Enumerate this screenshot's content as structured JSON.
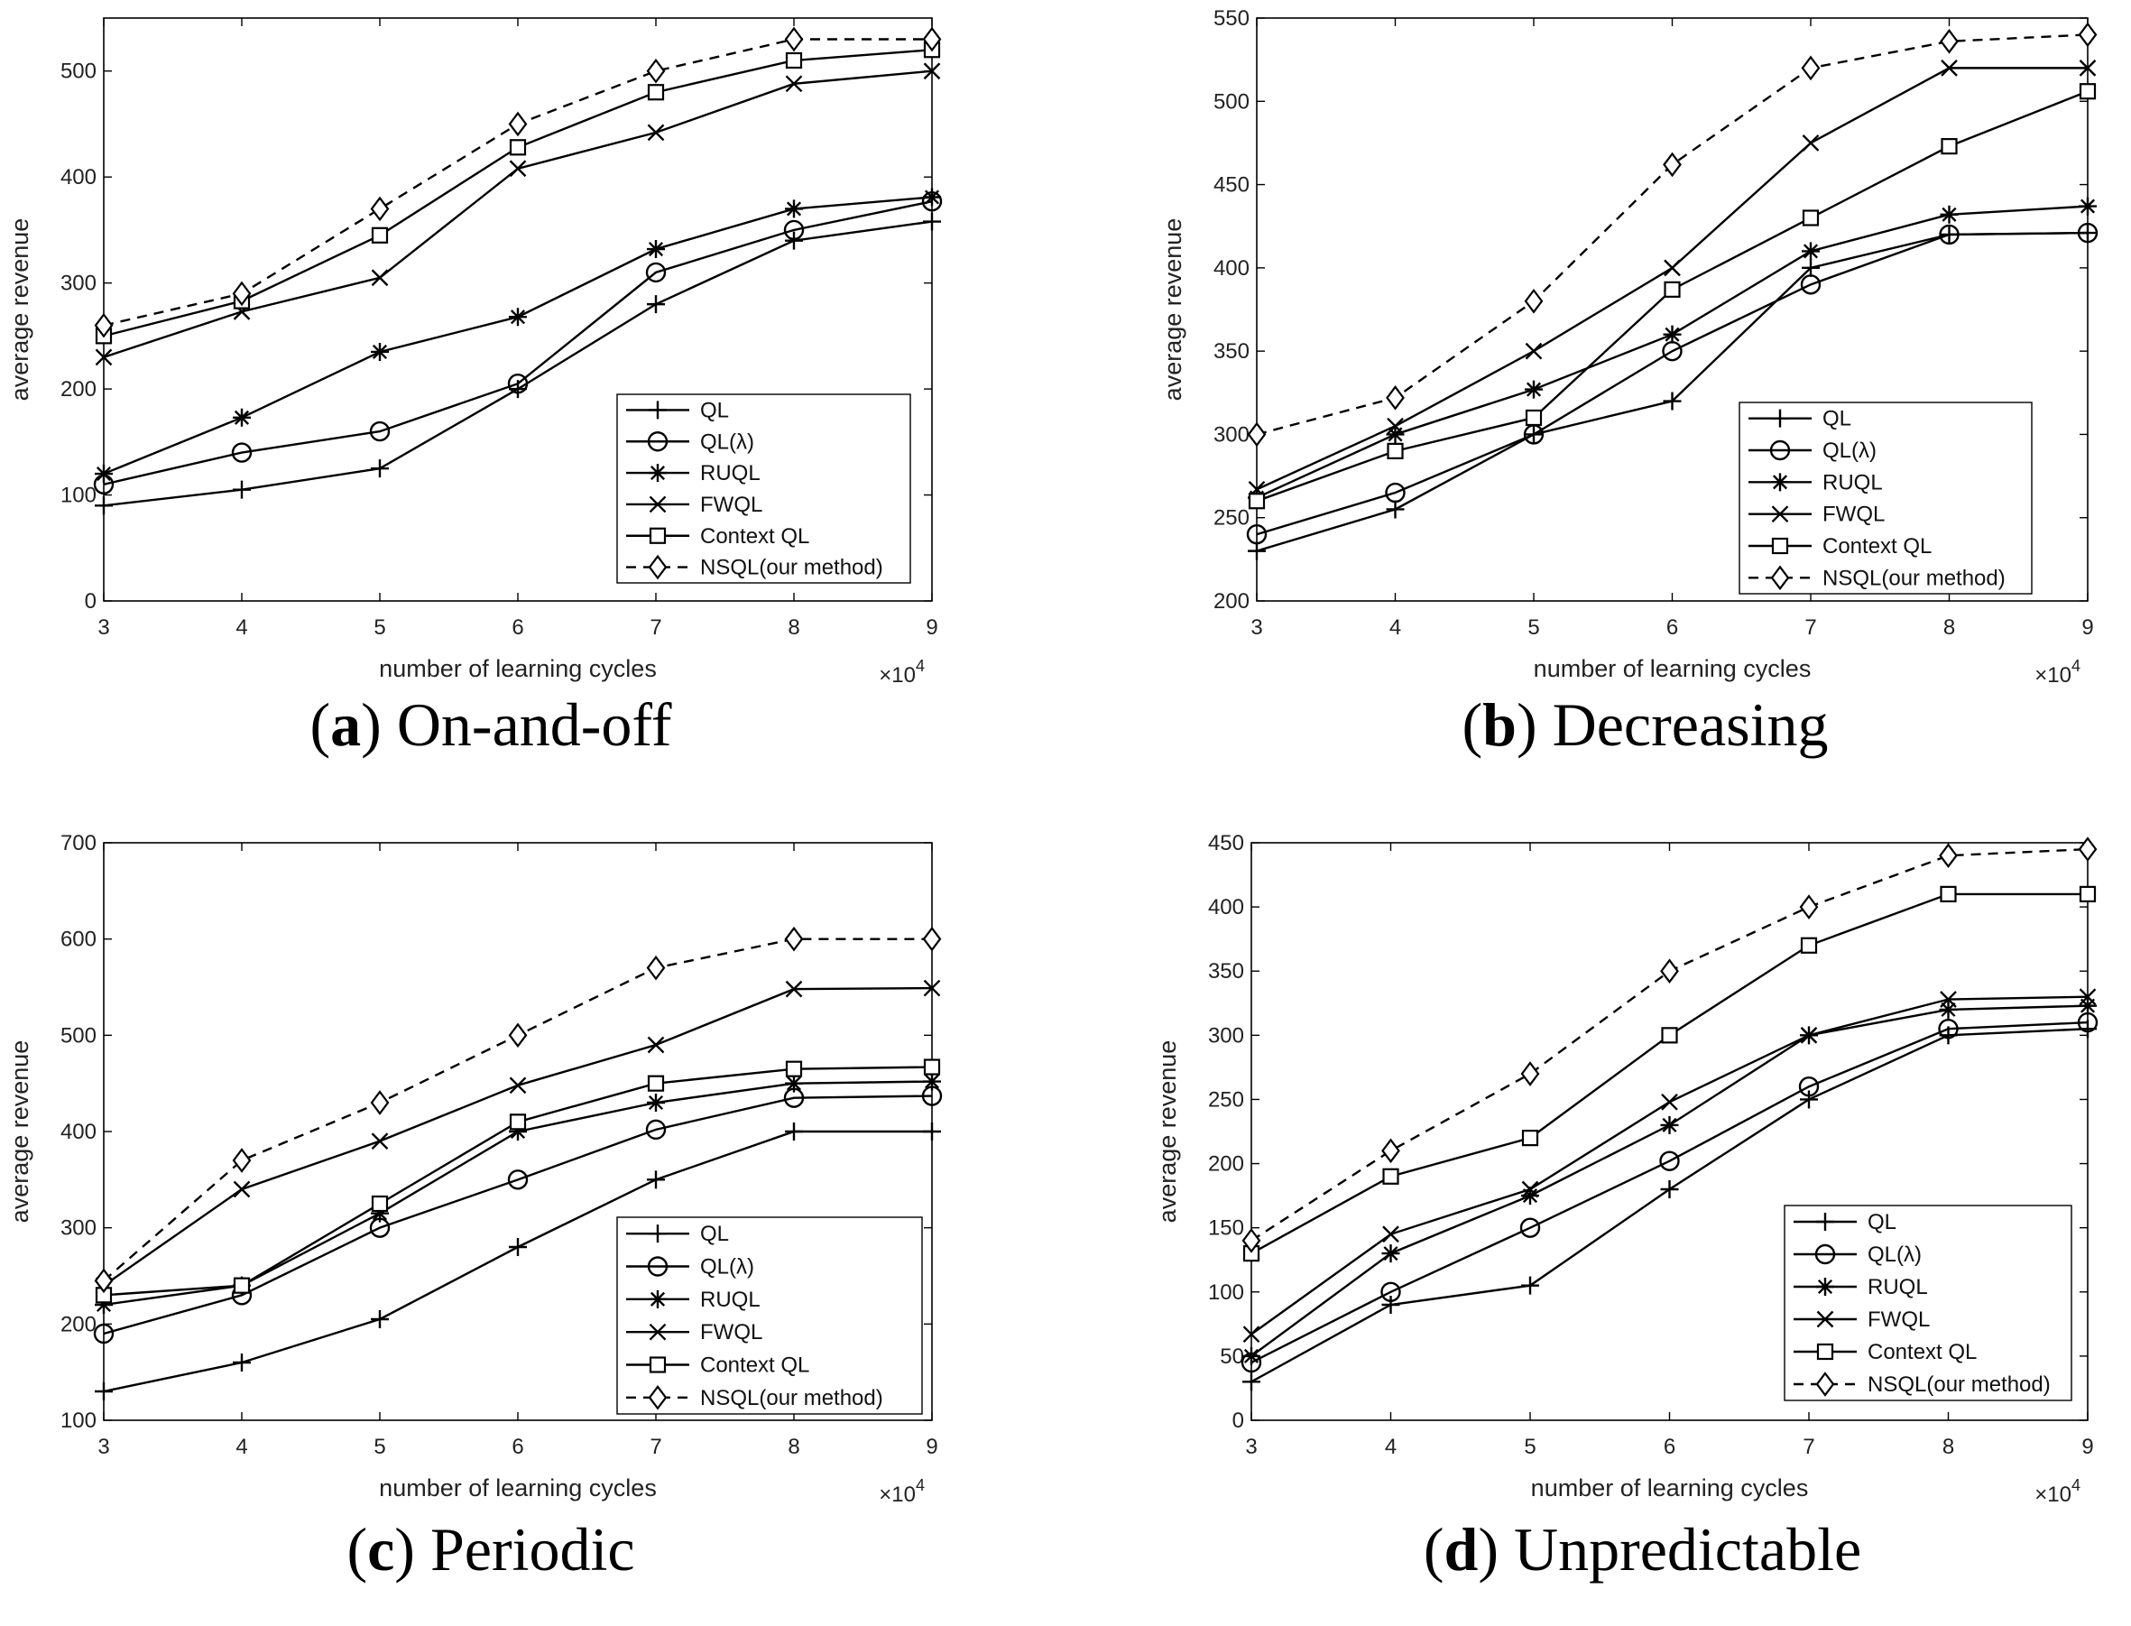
{
  "figure": {
    "background": "#ffffff",
    "line_color": "#000000"
  },
  "chart_data": [
    {
      "type": "line",
      "panel_letter": "a",
      "caption": "On-and-off",
      "xlabel": "number of learning cycles",
      "ylabel": "average revenue",
      "x_multiplier": "×10",
      "x_multiplier_exp": "4",
      "x": [
        3,
        4,
        5,
        6,
        7,
        8,
        9
      ],
      "xlim": [
        3,
        9
      ],
      "ylim": [
        0,
        550
      ],
      "yticks": [
        0,
        100,
        200,
        300,
        400,
        500
      ],
      "legend_position": "bottom-right",
      "series": [
        {
          "name": "QL",
          "marker": "plus",
          "dash": false,
          "values": [
            90,
            105,
            125,
            200,
            280,
            340,
            358
          ]
        },
        {
          "name": "QL(λ)",
          "marker": "circle",
          "dash": false,
          "values": [
            110,
            140,
            160,
            205,
            310,
            350,
            377
          ]
        },
        {
          "name": "RUQL",
          "marker": "asterisk",
          "dash": false,
          "values": [
            120,
            173,
            235,
            268,
            332,
            370,
            381
          ]
        },
        {
          "name": "FWQL",
          "marker": "cross",
          "dash": false,
          "values": [
            230,
            273,
            305,
            408,
            442,
            488,
            500
          ]
        },
        {
          "name": "Context QL",
          "marker": "square",
          "dash": false,
          "values": [
            250,
            283,
            345,
            428,
            480,
            510,
            520
          ]
        },
        {
          "name": "NSQL(our method)",
          "marker": "diamond",
          "dash": true,
          "values": [
            260,
            290,
            370,
            450,
            500,
            530,
            530
          ]
        }
      ]
    },
    {
      "type": "line",
      "panel_letter": "b",
      "caption": "Decreasing",
      "xlabel": "number of learning cycles",
      "ylabel": "average revenue",
      "x_multiplier": "×10",
      "x_multiplier_exp": "4",
      "x": [
        3,
        4,
        5,
        6,
        7,
        8,
        9
      ],
      "xlim": [
        3,
        9
      ],
      "ylim": [
        200,
        550
      ],
      "yticks": [
        200,
        250,
        300,
        350,
        400,
        450,
        500,
        550
      ],
      "legend_position": "bottom-right",
      "series": [
        {
          "name": "QL",
          "marker": "plus",
          "dash": false,
          "values": [
            230,
            255,
            300,
            320,
            400,
            420,
            421
          ]
        },
        {
          "name": "QL(λ)",
          "marker": "circle",
          "dash": false,
          "values": [
            240,
            265,
            300,
            350,
            390,
            420,
            421
          ]
        },
        {
          "name": "RUQL",
          "marker": "asterisk",
          "dash": false,
          "values": [
            262,
            300,
            327,
            360,
            410,
            432,
            437
          ]
        },
        {
          "name": "FWQL",
          "marker": "cross",
          "dash": false,
          "values": [
            267,
            305,
            350,
            400,
            475,
            520,
            520
          ]
        },
        {
          "name": "Context QL",
          "marker": "square",
          "dash": false,
          "values": [
            260,
            290,
            310,
            387,
            430,
            473,
            506
          ]
        },
        {
          "name": "NSQL(our method)",
          "marker": "diamond",
          "dash": true,
          "values": [
            300,
            322,
            380,
            462,
            520,
            536,
            540
          ]
        }
      ]
    },
    {
      "type": "line",
      "panel_letter": "c",
      "caption": "Periodic",
      "xlabel": "number of learning cycles",
      "ylabel": "average revenue",
      "x_multiplier": "×10",
      "x_multiplier_exp": "4",
      "x": [
        3,
        4,
        5,
        6,
        7,
        8,
        9
      ],
      "xlim": [
        3,
        9
      ],
      "ylim": [
        100,
        700
      ],
      "yticks": [
        100,
        200,
        300,
        400,
        500,
        600,
        700
      ],
      "legend_position": "bottom-right",
      "series": [
        {
          "name": "QL",
          "marker": "plus",
          "dash": false,
          "values": [
            130,
            160,
            205,
            280,
            350,
            400,
            400
          ]
        },
        {
          "name": "QL(λ)",
          "marker": "circle",
          "dash": false,
          "values": [
            190,
            230,
            300,
            350,
            402,
            435,
            437
          ]
        },
        {
          "name": "RUQL",
          "marker": "asterisk",
          "dash": false,
          "values": [
            220,
            240,
            315,
            400,
            430,
            450,
            452
          ]
        },
        {
          "name": "FWQL",
          "marker": "cross",
          "dash": false,
          "values": [
            240,
            340,
            390,
            448,
            490,
            548,
            549
          ]
        },
        {
          "name": "Context QL",
          "marker": "square",
          "dash": false,
          "values": [
            230,
            240,
            325,
            410,
            450,
            465,
            467
          ]
        },
        {
          "name": "NSQL(our method)",
          "marker": "diamond",
          "dash": true,
          "values": [
            245,
            370,
            430,
            500,
            570,
            600,
            600
          ]
        }
      ]
    },
    {
      "type": "line",
      "panel_letter": "d",
      "caption": "Unpredictable",
      "xlabel": "number of learning cycles",
      "ylabel": "average revenue",
      "x_multiplier": "×10",
      "x_multiplier_exp": "4",
      "x": [
        3,
        4,
        5,
        6,
        7,
        8,
        9
      ],
      "xlim": [
        3,
        9
      ],
      "ylim": [
        0,
        450
      ],
      "yticks": [
        0,
        50,
        100,
        150,
        200,
        250,
        300,
        350,
        400,
        450
      ],
      "legend_position": "bottom-right",
      "series": [
        {
          "name": "QL",
          "marker": "plus",
          "dash": false,
          "values": [
            30,
            90,
            105,
            180,
            250,
            300,
            305
          ]
        },
        {
          "name": "QL(λ)",
          "marker": "circle",
          "dash": false,
          "values": [
            45,
            100,
            150,
            202,
            260,
            305,
            310
          ]
        },
        {
          "name": "RUQL",
          "marker": "asterisk",
          "dash": false,
          "values": [
            50,
            130,
            175,
            230,
            300,
            320,
            323
          ]
        },
        {
          "name": "FWQL",
          "marker": "cross",
          "dash": false,
          "values": [
            67,
            145,
            180,
            248,
            300,
            328,
            330
          ]
        },
        {
          "name": "Context QL",
          "marker": "square",
          "dash": false,
          "values": [
            130,
            190,
            220,
            300,
            370,
            410,
            410
          ]
        },
        {
          "name": "NSQL(our method)",
          "marker": "diamond",
          "dash": true,
          "values": [
            140,
            210,
            270,
            350,
            400,
            440,
            445
          ]
        }
      ]
    }
  ]
}
